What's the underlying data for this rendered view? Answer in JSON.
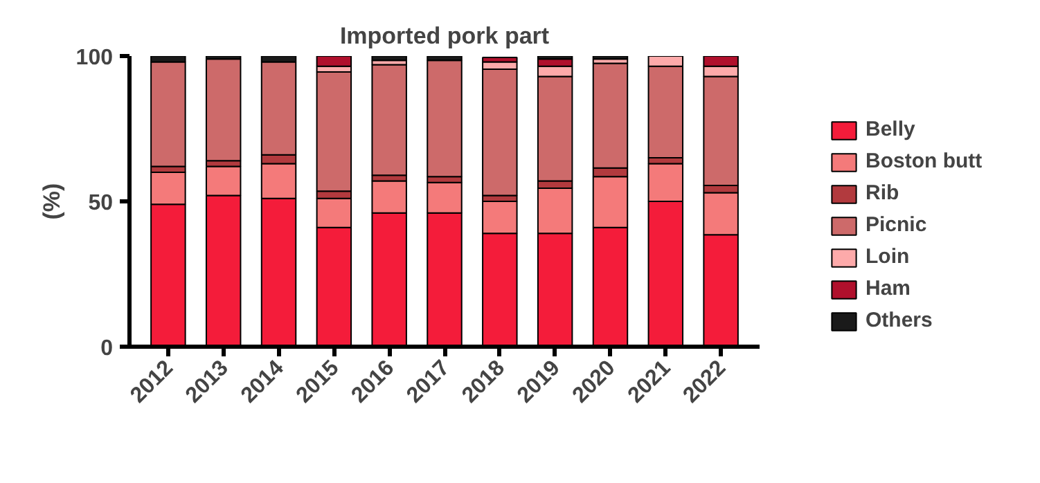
{
  "chart_data": {
    "type": "bar",
    "title": "Imported pork part",
    "ylabel": "(%)",
    "stacked": true,
    "grid": false,
    "legend": "right",
    "categories": [
      "2012",
      "2013",
      "2014",
      "2015",
      "2016",
      "2017",
      "2018",
      "2019",
      "2020",
      "2021",
      "2022"
    ],
    "ylim": [
      0,
      100
    ],
    "yticks": [
      0,
      50,
      100
    ],
    "series": [
      {
        "name": "Belly",
        "color": "#f41c3a",
        "values": [
          49,
          52,
          51,
          41,
          46,
          46,
          39,
          39,
          41,
          50,
          38.5
        ]
      },
      {
        "name": "Boston butt",
        "color": "#f47a7a",
        "values": [
          11,
          10,
          12,
          10,
          11,
          10.5,
          11,
          15.5,
          17.5,
          13,
          14.5
        ]
      },
      {
        "name": "Rib",
        "color": "#b23a3e",
        "values": [
          2,
          2,
          3,
          2.5,
          2,
          2,
          2,
          2.5,
          3,
          2,
          2.5
        ]
      },
      {
        "name": "Picnic",
        "color": "#cd6a6a",
        "values": [
          36,
          35,
          32,
          41,
          38,
          40,
          43.5,
          36,
          36,
          31.5,
          37.5
        ]
      },
      {
        "name": "Loin",
        "color": "#fdaaaa",
        "values": [
          null,
          null,
          null,
          2,
          1.5,
          null,
          2.5,
          3.5,
          1.5,
          3.5,
          3.5
        ]
      },
      {
        "name": "Ham",
        "color": "#b0102c",
        "values": [
          null,
          null,
          null,
          3.5,
          null,
          null,
          1.5,
          2.5,
          null,
          null,
          3.5
        ]
      },
      {
        "name": "Others",
        "color": "#1a1a1a",
        "values": [
          2,
          1,
          2,
          null,
          1.5,
          1.5,
          null,
          1,
          1,
          null,
          null
        ]
      }
    ]
  }
}
